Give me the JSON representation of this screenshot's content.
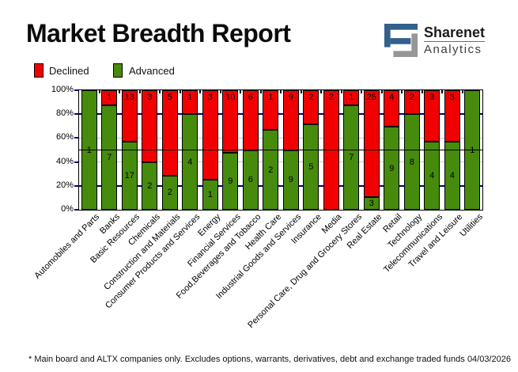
{
  "header": {
    "title": "Market Breadth Report",
    "logo": {
      "brand": "Sharenet",
      "sub": "Analytics"
    }
  },
  "legend": {
    "declined": "Declined",
    "advanced": "Advanced"
  },
  "footer": {
    "note": "* Main board and ALTX companies only. Excludes options, warrants, derivatives, debt and exchange traded funds",
    "date": "04/03/2026"
  },
  "colors": {
    "declined": "#f20000",
    "advanced": "#478b0d",
    "axis_tick": "#000080",
    "grid_gray": "#c8c8c8",
    "reference_line": "#000000",
    "logo_blue": "#33608c",
    "logo_gray": "#969696"
  },
  "chart_data": {
    "type": "bar",
    "variant": "100-percent-stacked-column",
    "title": "Market Breadth Report",
    "categories": [
      "Automobiles and Parts",
      "Banks",
      "Basic Resources",
      "Chemicals",
      "Construction and Materials",
      "Consumer Products and Services",
      "Energy",
      "Financial Services",
      "Food,Beverages and Tobacco",
      "Health Care",
      "Industrial Goods and Services",
      "Insurance",
      "Media",
      "Personal Care, Drug and Grocery Stores",
      "Real Estate",
      "Retail",
      "Technology",
      "Telecommunications",
      "Travel and Leisure",
      "Utilities"
    ],
    "series": [
      {
        "name": "Declined",
        "color": "#f20000",
        "values": [
          0,
          1,
          13,
          3,
          5,
          1,
          3,
          10,
          6,
          1,
          9,
          2,
          2,
          1,
          25,
          4,
          2,
          3,
          3,
          0
        ]
      },
      {
        "name": "Advanced",
        "color": "#478b0d",
        "values": [
          1,
          7,
          17,
          2,
          2,
          4,
          1,
          9,
          6,
          2,
          9,
          5,
          0,
          7,
          3,
          9,
          8,
          4,
          4,
          1
        ]
      }
    ],
    "y_ticks": [
      "0%",
      "20%",
      "40%",
      "60%",
      "80%",
      "100%"
    ],
    "ylim": [
      0,
      100
    ],
    "reference_line_pct": 50,
    "grid": true,
    "legend_position": "top-left"
  }
}
